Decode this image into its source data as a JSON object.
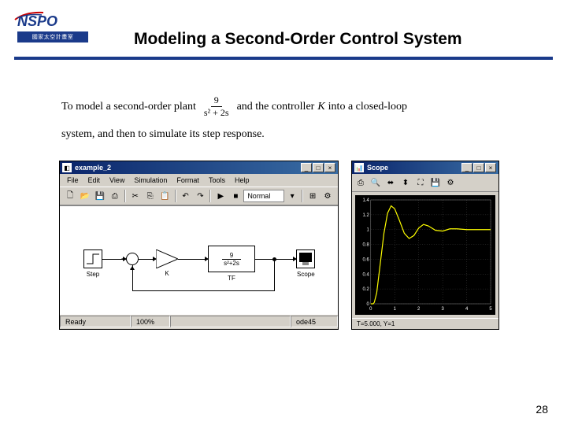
{
  "title": "Modeling a Second-Order Control System",
  "logo": {
    "name": "NSPO",
    "subtitle": "國家太空計畫室"
  },
  "description": {
    "part1": "To model a second-order plant",
    "frac_num": "9",
    "frac_den": "s² + 2s",
    "part2": "and the controller",
    "controller": "K",
    "part3": "into a closed-loop",
    "line2": "system, and then to simulate its step response."
  },
  "simulink_window": {
    "title": "example_2",
    "menu": [
      "File",
      "Edit",
      "View",
      "Simulation",
      "Format",
      "Tools",
      "Help"
    ],
    "sim_mode": "Normal",
    "tf_num": "9",
    "tf_den": "s²+2s",
    "labels": {
      "step": "Step",
      "gain": "K",
      "tf": "TF",
      "scope": "Scope"
    },
    "status": {
      "ready": "Ready",
      "zoom": "100%",
      "solver": "ode45"
    }
  },
  "scope_window": {
    "title": "Scope",
    "y_ticks": [
      "1.4",
      "1.2",
      "1",
      "0.8",
      "0.6",
      "0.4",
      "0.2",
      "0"
    ],
    "x_ticks": [
      "0",
      "1",
      "2",
      "3",
      "4",
      "5"
    ],
    "status": "T=5.000, Y=1",
    "curve_color": "#ffff00",
    "curve": [
      [
        0,
        0
      ],
      [
        0.1,
        0
      ],
      [
        0.15,
        0.02
      ],
      [
        0.25,
        0.15
      ],
      [
        0.4,
        0.55
      ],
      [
        0.55,
        0.95
      ],
      [
        0.7,
        1.22
      ],
      [
        0.85,
        1.32
      ],
      [
        1.0,
        1.28
      ],
      [
        1.2,
        1.12
      ],
      [
        1.4,
        0.95
      ],
      [
        1.6,
        0.88
      ],
      [
        1.8,
        0.92
      ],
      [
        2.0,
        1.02
      ],
      [
        2.2,
        1.07
      ],
      [
        2.4,
        1.05
      ],
      [
        2.7,
        0.99
      ],
      [
        3.0,
        0.98
      ],
      [
        3.3,
        1.01
      ],
      [
        3.6,
        1.01
      ],
      [
        4.0,
        1.0
      ],
      [
        4.5,
        1.0
      ],
      [
        5.0,
        1.0
      ]
    ],
    "ylim": [
      0,
      1.4
    ],
    "xlim": [
      0,
      5
    ]
  },
  "page_number": "28"
}
